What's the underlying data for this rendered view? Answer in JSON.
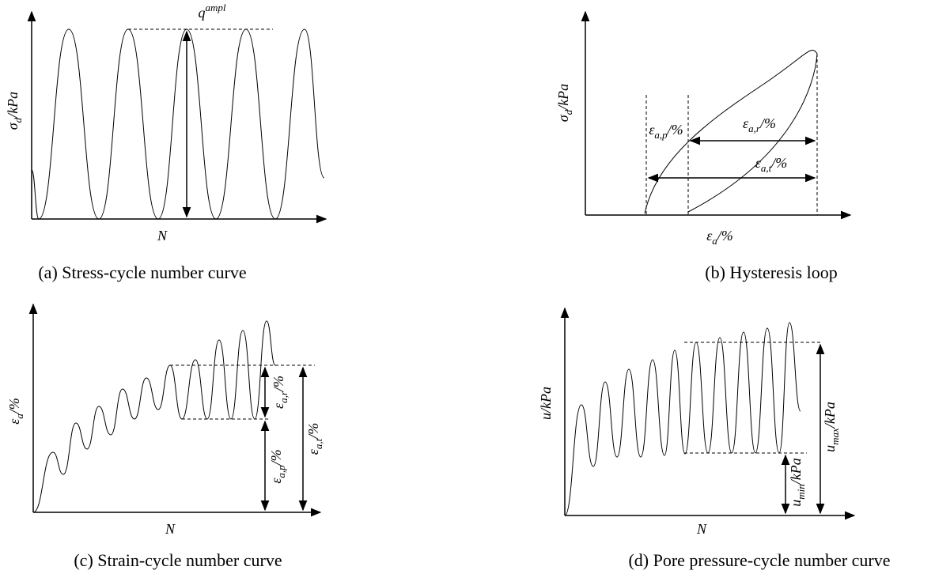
{
  "panels": [
    {
      "caption": "(a)  Stress-cycle number curve",
      "y_label": {
        "symbol": "σ",
        "sub": "d",
        "unit": "/kPa"
      },
      "x_label": "N",
      "annotations": [
        {
          "symbol": "q",
          "sup": "ampl"
        }
      ]
    },
    {
      "caption": "(b)  Hysteresis loop",
      "y_label": {
        "symbol": "σ",
        "sub": "d",
        "unit": "/kPa"
      },
      "x_label": {
        "symbol": "ε",
        "sub": "a",
        "unit": "/%"
      },
      "annotations": [
        {
          "symbol": "ε",
          "sub": "a,p",
          "unit": "/%"
        },
        {
          "symbol": "ε",
          "sub": "a,r",
          "unit": "/%"
        },
        {
          "symbol": "ε",
          "sub": "a,t",
          "unit": "/%"
        }
      ]
    },
    {
      "caption": "(c)  Strain-cycle number curve",
      "y_label": {
        "symbol": "ε",
        "sub": "a",
        "unit": "/%"
      },
      "x_label": "N",
      "annotations": [
        {
          "symbol": "ε",
          "sub": "a,r",
          "unit": "/%"
        },
        {
          "symbol": "ε",
          "sub": "a,p",
          "unit": "/%"
        },
        {
          "symbol": "ε",
          "sub": "a,t",
          "unit": "/%"
        }
      ]
    },
    {
      "caption": "(d)  Pore pressure-cycle number curve",
      "y_label": {
        "symbol": "u",
        "unit": "/kPa"
      },
      "x_label": "N",
      "annotations": [
        {
          "symbol": "u",
          "sub": "max",
          "unit": "/kPa"
        },
        {
          "symbol": "u",
          "sub": "min",
          "unit": "/kPa"
        }
      ]
    }
  ]
}
